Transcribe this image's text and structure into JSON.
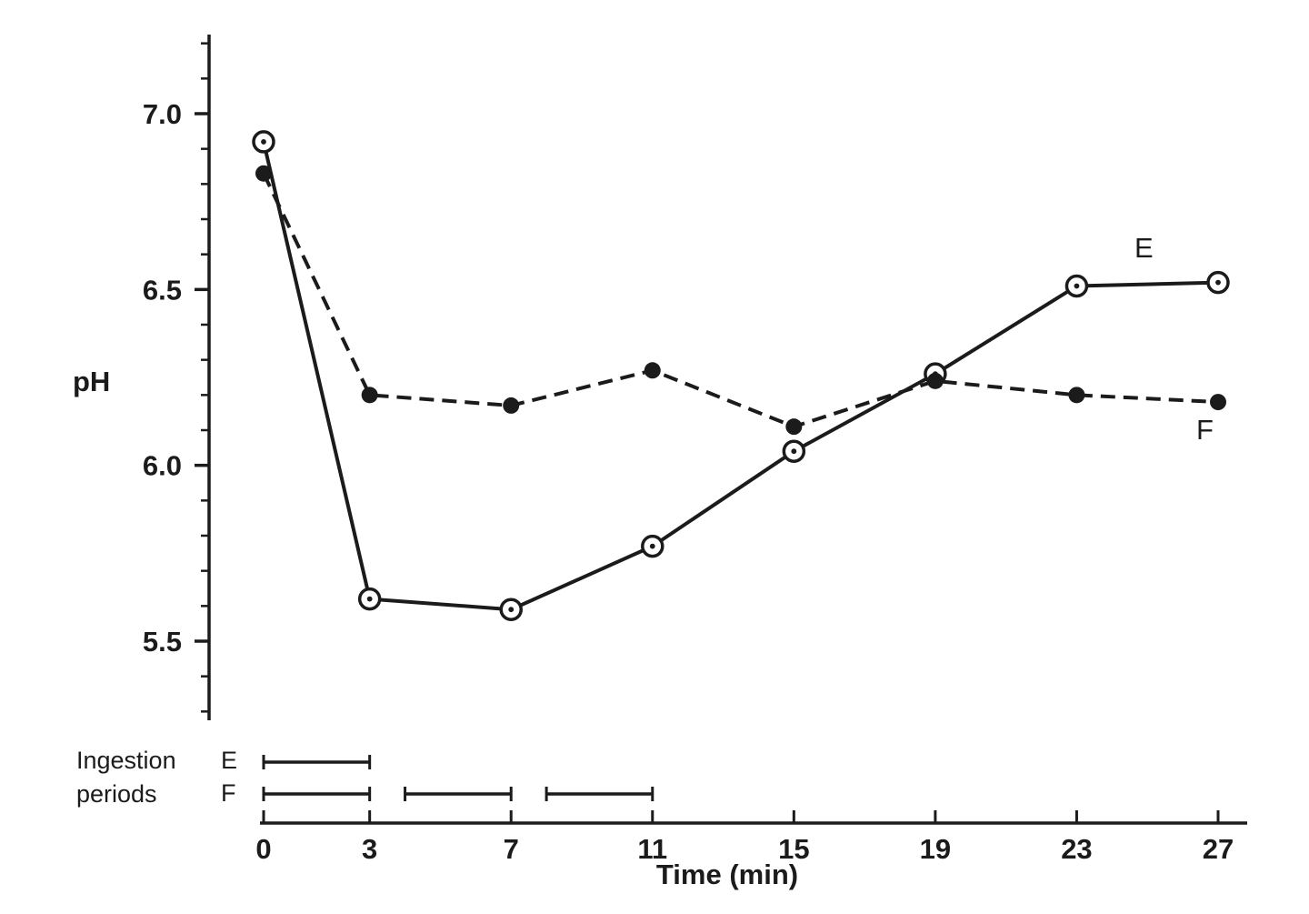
{
  "chart_data": {
    "type": "line",
    "title": "",
    "xlabel": "Time (min)",
    "ylabel": "pH",
    "x": [
      0,
      3,
      7,
      11,
      15,
      19,
      23,
      27
    ],
    "x_ticks": [
      0,
      3,
      7,
      11,
      15,
      19,
      23,
      27
    ],
    "x_tick_labels": [
      "0",
      "3",
      "7",
      "11",
      "15",
      "19",
      "23",
      "27"
    ],
    "y_ticks": [
      5.5,
      6.0,
      6.5,
      7.0
    ],
    "y_tick_labels": [
      "5.5",
      "6.0",
      "6.5",
      "7.0"
    ],
    "xlim": [
      0,
      27
    ],
    "ylim": [
      5.28,
      7.22
    ],
    "grid": false,
    "legend": "inline-labels",
    "series": [
      {
        "name": "E",
        "values": [
          6.92,
          5.62,
          5.59,
          5.77,
          6.04,
          6.26,
          6.51,
          6.52
        ],
        "line_style": "solid",
        "marker": "open-circle-with-center-dot"
      },
      {
        "name": "F",
        "values": [
          6.83,
          6.2,
          6.17,
          6.27,
          6.11,
          6.24,
          6.2,
          6.18
        ],
        "line_style": "dashed",
        "marker": "filled-circle"
      }
    ],
    "ingestion": {
      "label_line1": "Ingestion",
      "label_line2": "periods",
      "rows": [
        {
          "name": "E",
          "intervals": [
            [
              0,
              3
            ]
          ]
        },
        {
          "name": "F",
          "intervals": [
            [
              0,
              3
            ],
            [
              4,
              7
            ],
            [
              8,
              11
            ]
          ]
        }
      ]
    },
    "colors": {
      "ink": "#1b1b1b",
      "background": "#ffffff"
    }
  }
}
